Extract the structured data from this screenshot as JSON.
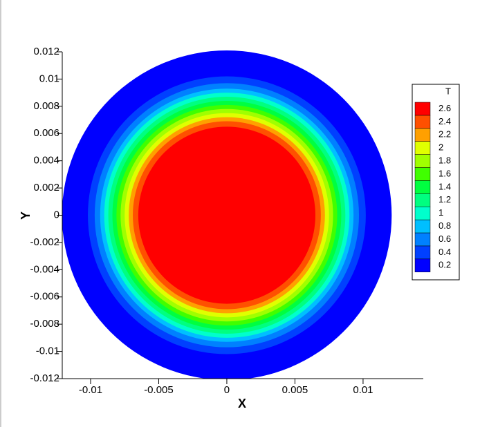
{
  "chart_data": {
    "type": "contour",
    "xlabel": "X",
    "ylabel": "Y",
    "xlim": [
      -0.01208,
      0.01442
    ],
    "ylim": [
      -0.012,
      0.012
    ],
    "xticks": [
      -0.01,
      -0.005,
      0,
      0.005,
      0.01
    ],
    "yticks": [
      -0.012,
      -0.01,
      -0.008,
      -0.006,
      -0.004,
      -0.002,
      0,
      0.002,
      0.004,
      0.006,
      0.008,
      0.01,
      0.012
    ],
    "center": [
      0,
      0
    ],
    "legend": {
      "title": "T",
      "position": "right"
    },
    "contours": {
      "levels": [
        0.2,
        0.4,
        0.6,
        0.8,
        1,
        1.2,
        1.4,
        1.6,
        1.8,
        2,
        2.2,
        2.4,
        2.6
      ],
      "colors": [
        "#0000ff",
        "#0040ff",
        "#0080ff",
        "#00bfff",
        "#00ffcc",
        "#00ff80",
        "#00ff40",
        "#40ff00",
        "#a0ff00",
        "#e0ff00",
        "#ffa000",
        "#ff5000",
        "#ff0000"
      ],
      "radii": [
        0.0121,
        0.0102,
        0.0097,
        0.0093,
        0.009,
        0.0087,
        0.0084,
        0.0081,
        0.0078,
        0.0075,
        0.0072,
        0.0069,
        0.0065
      ]
    }
  }
}
